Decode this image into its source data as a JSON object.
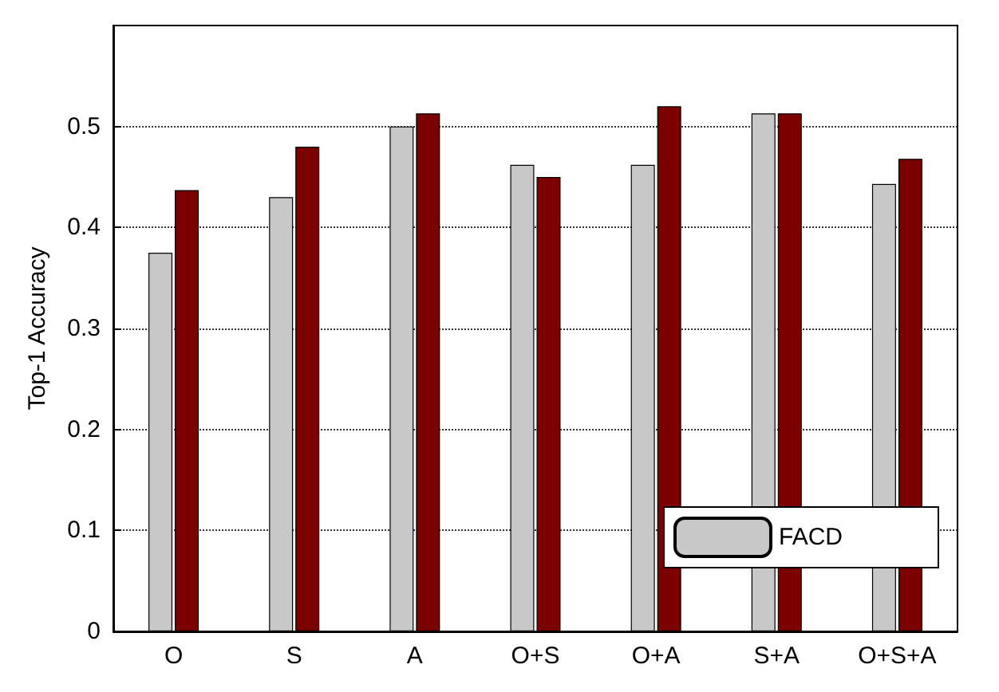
{
  "chart_data": {
    "type": "bar",
    "ylabel": "Top-1 Accuracy",
    "categories": [
      "O",
      "S",
      "A",
      "O+S",
      "O+A",
      "S+A",
      "O+S+A"
    ],
    "series": [
      {
        "name": "FACD",
        "color": "#c8c8c8",
        "values": [
          0.375,
          0.43,
          0.5,
          0.462,
          0.462,
          0.513,
          0.443
        ]
      },
      {
        "color": "#7b0000",
        "values": [
          0.437,
          0.48,
          0.513,
          0.45,
          0.52,
          0.513,
          0.468
        ]
      }
    ],
    "ylim": [
      0,
      0.6
    ],
    "yticks": [
      0,
      0.1,
      0.2,
      0.3,
      0.4,
      0.5
    ],
    "grid": "y",
    "legend": "bottom right"
  }
}
